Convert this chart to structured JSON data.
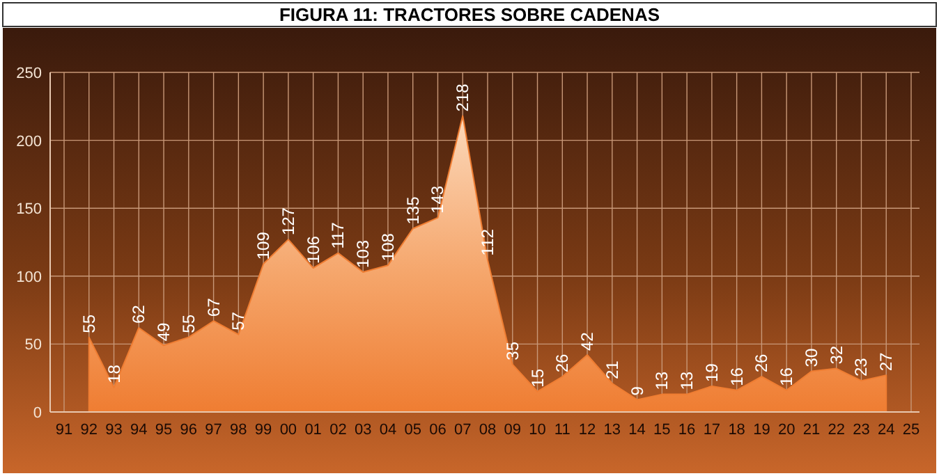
{
  "chart_data": {
    "type": "area",
    "title": "FIGURA 11: TRACTORES SOBRE CADENAS",
    "categories": [
      "91",
      "92",
      "93",
      "94",
      "95",
      "96",
      "97",
      "98",
      "99",
      "00",
      "01",
      "02",
      "03",
      "04",
      "05",
      "06",
      "07",
      "08",
      "09",
      "10",
      "11",
      "12",
      "13",
      "14",
      "15",
      "16",
      "17",
      "18",
      "19",
      "20",
      "21",
      "22",
      "23",
      "24",
      "25"
    ],
    "values": [
      null,
      55,
      18,
      62,
      49,
      55,
      67,
      57,
      109,
      127,
      106,
      117,
      103,
      108,
      135,
      143,
      218,
      112,
      35,
      15,
      26,
      42,
      21,
      9,
      13,
      13,
      19,
      16,
      26,
      16,
      30,
      32,
      23,
      27,
      null
    ],
    "color": "#ef7d32",
    "ylim": [
      0,
      250
    ],
    "yticks": [
      0,
      50,
      100,
      150,
      200,
      250
    ],
    "grid": true,
    "data_labels": true
  }
}
